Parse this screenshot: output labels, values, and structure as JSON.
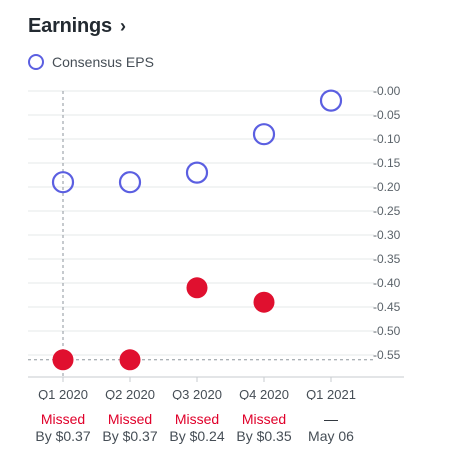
{
  "header": {
    "title": "Earnings",
    "chevron": "›"
  },
  "legend": {
    "label": "Consensus EPS"
  },
  "colors": {
    "consensus": "#5b5fe1",
    "actual": "#e0102f",
    "missed": "#e0002a"
  },
  "chart_data": {
    "type": "scatter",
    "categories": [
      "Q1 2020",
      "Q2 2020",
      "Q3 2020",
      "Q4 2020",
      "Q1 2021"
    ],
    "series": [
      {
        "name": "Consensus EPS",
        "values": [
          -0.19,
          -0.19,
          -0.17,
          -0.09,
          -0.02
        ]
      },
      {
        "values": [
          -0.56,
          -0.56,
          -0.41,
          -0.44,
          null
        ]
      }
    ],
    "yticks": [
      "-0.00",
      "-0.05",
      "-0.10",
      "-0.15",
      "-0.20",
      "-0.25",
      "-0.30",
      "-0.35",
      "-0.40",
      "-0.45",
      "-0.50",
      "-0.55"
    ],
    "ylim": [
      -0.6,
      0.0
    ],
    "crosshair": {
      "category": "Q1 2020",
      "value": -0.56
    }
  },
  "results": [
    {
      "status": "Missed",
      "detail": "By $0.37"
    },
    {
      "status": "Missed",
      "detail": "By $0.37"
    },
    {
      "status": "Missed",
      "detail": "By $0.24"
    },
    {
      "status": "Missed",
      "detail": "By $0.35"
    },
    {
      "status": "—",
      "detail": "May 06"
    }
  ]
}
